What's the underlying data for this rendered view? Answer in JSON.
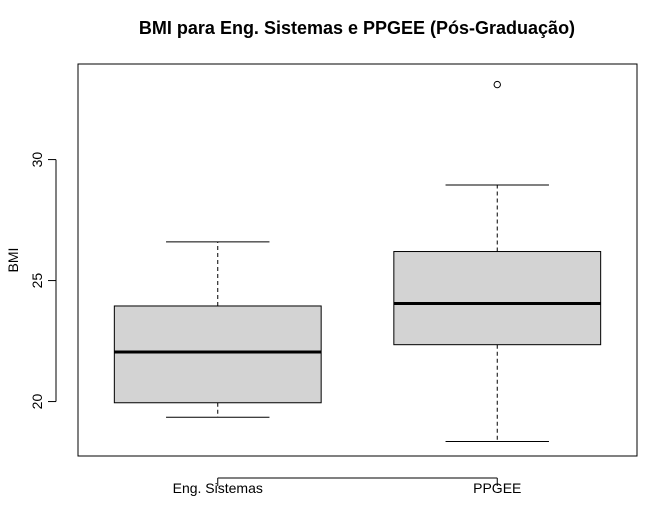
{
  "chart_data": {
    "type": "boxplot",
    "title": "BMI para Eng. Sistemas e PPGEE (Pós-Graduação)",
    "xlabel": "",
    "ylabel": "BMI",
    "categories": [
      "Eng. Sistemas",
      "PPGEE"
    ],
    "boxes": [
      {
        "category": "Eng. Sistemas",
        "whisker_low": 19.35,
        "q1": 19.95,
        "median": 22.05,
        "q3": 23.95,
        "whisker_high": 26.6,
        "outliers": []
      },
      {
        "category": "PPGEE",
        "whisker_low": 18.35,
        "q1": 22.35,
        "median": 24.05,
        "q3": 26.2,
        "whisker_high": 28.95,
        "outliers": [
          33.1
        ]
      }
    ],
    "yticks": [
      20,
      25,
      30
    ],
    "ylim": [
      17.75,
      33.95
    ],
    "box_color": "#d3d3d3",
    "grid": false
  }
}
